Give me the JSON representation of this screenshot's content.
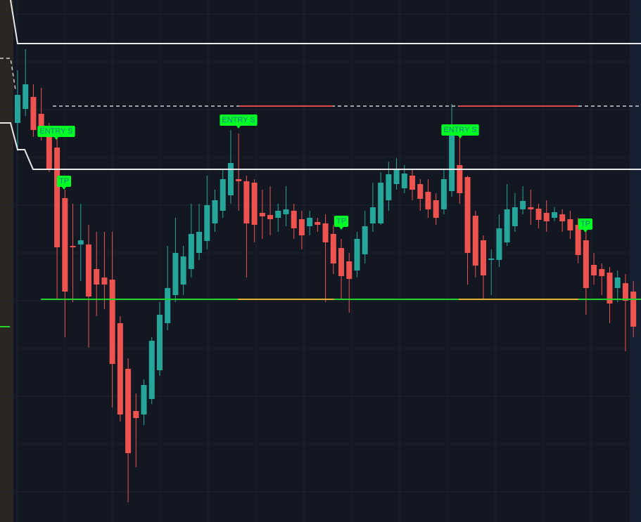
{
  "chart_data": {
    "type": "candlestick",
    "up_color": "#26a69a",
    "down_color": "#ef5350",
    "ylim": [
      0,
      743
    ],
    "open": [
      568,
      588,
      605,
      581,
      558,
      533,
      461,
      393,
      395,
      395,
      360,
      348,
      345,
      283,
      218,
      158,
      153,
      175,
      216,
      283,
      323,
      338,
      360,
      383,
      400,
      425,
      443,
      465,
      488,
      485,
      483,
      440,
      437,
      433,
      438,
      443,
      431,
      421,
      427,
      425,
      410,
      390,
      371,
      358,
      381,
      425,
      425,
      458,
      481,
      475,
      493,
      481,
      470,
      458,
      445,
      471,
      508,
      491,
      436,
      401,
      373,
      373,
      398,
      421,
      445,
      448,
      446,
      440,
      433,
      438,
      431,
      423,
      401,
      366,
      360,
      355,
      333,
      340,
      328
    ],
    "close": [
      608,
      623,
      558,
      553,
      503,
      391,
      328,
      391,
      401,
      321,
      338,
      338,
      225,
      153,
      98,
      148,
      195,
      258,
      295,
      333,
      383,
      378,
      410,
      413,
      451,
      458,
      488,
      511,
      485,
      425,
      423,
      435,
      431,
      443,
      445,
      418,
      408,
      433,
      423,
      398,
      368,
      350,
      346,
      403,
      421,
      448,
      483,
      495,
      501,
      496,
      473,
      460,
      445,
      433,
      488,
      550,
      468,
      383,
      365,
      351,
      375,
      418,
      445,
      448,
      457,
      445,
      430,
      428,
      441,
      428,
      415,
      380,
      333,
      351,
      350,
      311,
      348,
      315,
      278
    ],
    "high": [
      643,
      673,
      623,
      618,
      568,
      548,
      473,
      453,
      453,
      423,
      413,
      413,
      413,
      293,
      233,
      183,
      203,
      263,
      313,
      393,
      433,
      393,
      453,
      453,
      493,
      473,
      503,
      558,
      553,
      493,
      488,
      473,
      478,
      453,
      478,
      453,
      443,
      443,
      433,
      438,
      423,
      403,
      383,
      413,
      443,
      483,
      498,
      513,
      518,
      508,
      503,
      488,
      488,
      468,
      503,
      595,
      553,
      493,
      443,
      408,
      388,
      438,
      481,
      468,
      478,
      473,
      453,
      458,
      448,
      445,
      443,
      433,
      413,
      383,
      368,
      363,
      358,
      353,
      343
    ],
    "low": [
      528,
      578,
      548,
      543,
      498,
      318,
      263,
      313,
      343,
      248,
      293,
      303,
      163,
      143,
      28,
      78,
      138,
      168,
      208,
      273,
      313,
      323,
      348,
      373,
      388,
      413,
      433,
      453,
      443,
      348,
      398,
      403,
      408,
      413,
      421,
      403,
      388,
      408,
      413,
      313,
      353,
      318,
      298,
      348,
      368,
      413,
      423,
      443,
      473,
      468,
      458,
      443,
      433,
      423,
      438,
      463,
      453,
      338,
      348,
      318,
      323,
      363,
      393,
      413,
      438,
      423,
      418,
      413,
      428,
      413,
      403,
      368,
      295,
      338,
      323,
      283,
      313,
      243,
      263
    ],
    "annotations": [
      "ENTRY S",
      "ENTRY S",
      "ENTRY S",
      "TP",
      "TP",
      "TP"
    ]
  }
}
